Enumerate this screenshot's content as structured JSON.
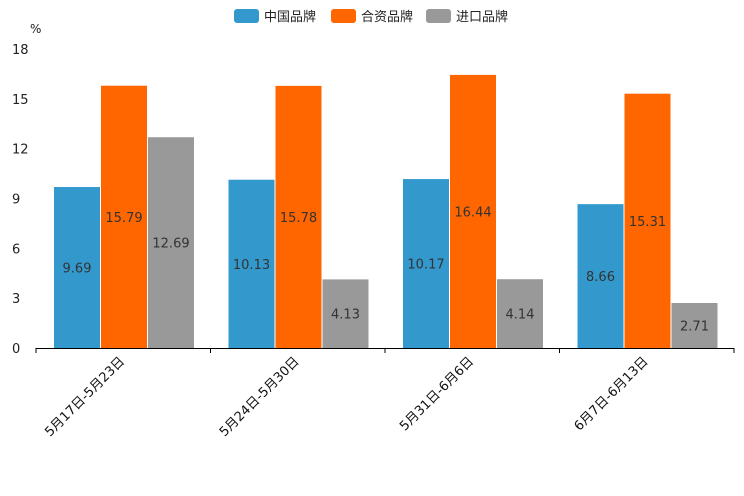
{
  "chart_data": {
    "type": "bar",
    "unit": "%",
    "categories": [
      "5月17日-5月23日",
      "5月24日-5月30日",
      "5月31日-6月6日",
      "6月7日-6月13日"
    ],
    "series": [
      {
        "name": "中国品牌",
        "color": "#3399cc",
        "values": [
          9.69,
          10.13,
          10.17,
          8.66
        ]
      },
      {
        "name": "合资品牌",
        "color": "#ff6600",
        "values": [
          15.79,
          15.78,
          16.44,
          15.31
        ]
      },
      {
        "name": "进口品牌",
        "color": "#999999",
        "values": [
          12.69,
          4.13,
          4.14,
          2.71
        ]
      }
    ],
    "ylim": [
      0,
      18
    ],
    "yticks": [
      0,
      3,
      6,
      9,
      12,
      15,
      18
    ],
    "legend_position": "top-center"
  }
}
